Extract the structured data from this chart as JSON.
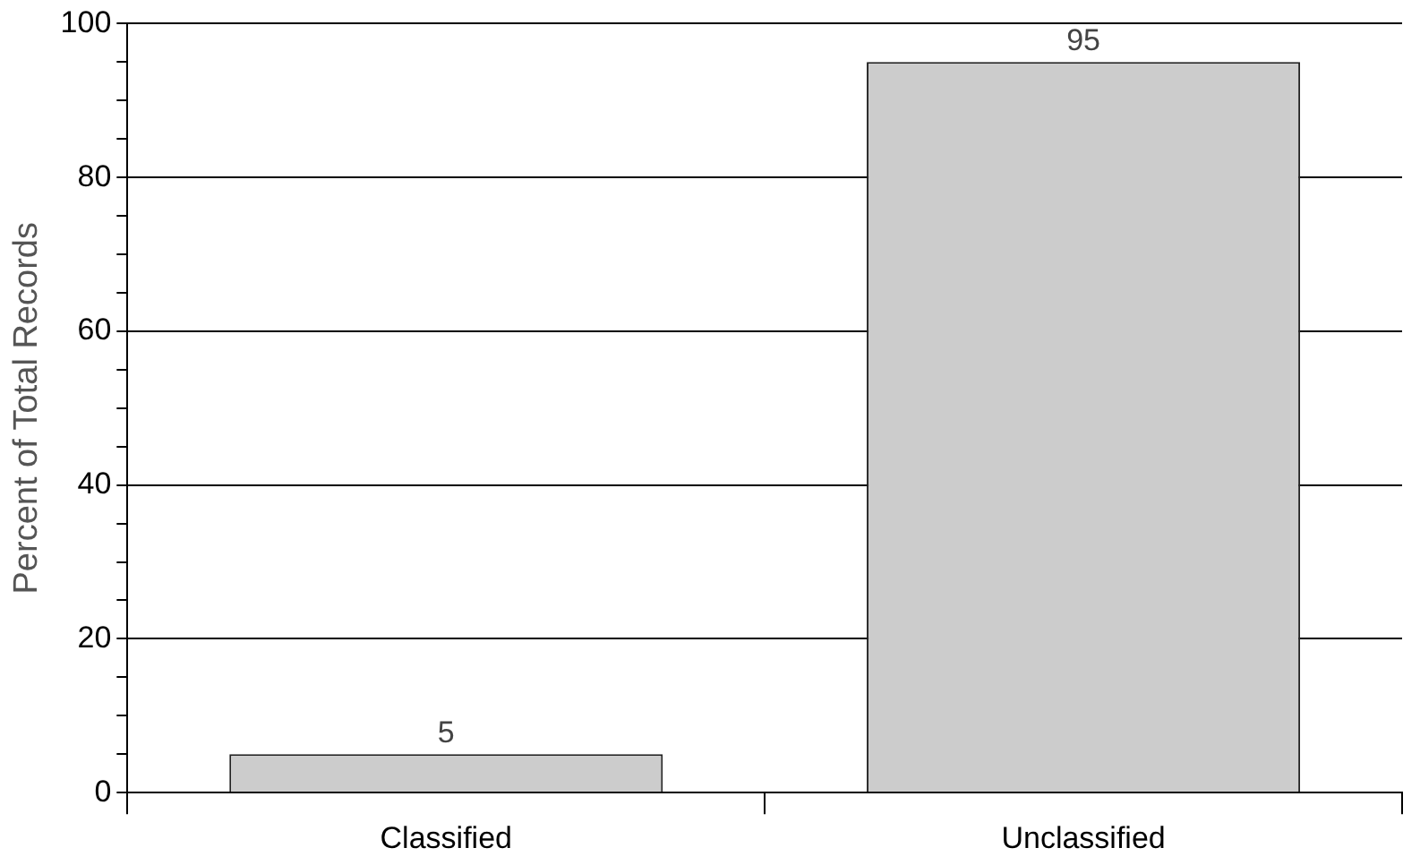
{
  "chart_data": {
    "type": "bar",
    "ylabel": "Percent of Total Records",
    "categories": [
      "Classified",
      "Unclassified"
    ],
    "series": [
      {
        "color": "#cccccc",
        "values": [
          5,
          95
        ]
      }
    ],
    "ylim": [
      0,
      100
    ],
    "yticks": [
      0,
      {
        "value": 5,
        "label": null
      },
      {
        "value": 10,
        "label": null
      },
      {
        "value": 15,
        "label": null
      },
      20,
      {
        "value": 25,
        "label": null
      },
      {
        "value": 30,
        "label": null
      },
      {
        "value": 35,
        "label": null
      },
      40,
      {
        "value": 45,
        "label": null
      },
      {
        "value": 50,
        "label": null
      },
      {
        "value": 55,
        "label": null
      },
      60,
      {
        "value": 65,
        "label": null
      },
      {
        "value": 70,
        "label": null
      },
      {
        "value": 75,
        "label": null
      },
      80,
      {
        "value": 85,
        "label": null
      },
      {
        "value": 90,
        "label": null
      },
      {
        "value": 95,
        "label": null
      },
      100
    ],
    "grid": "y",
    "data_labels": true,
    "legend": false
  }
}
